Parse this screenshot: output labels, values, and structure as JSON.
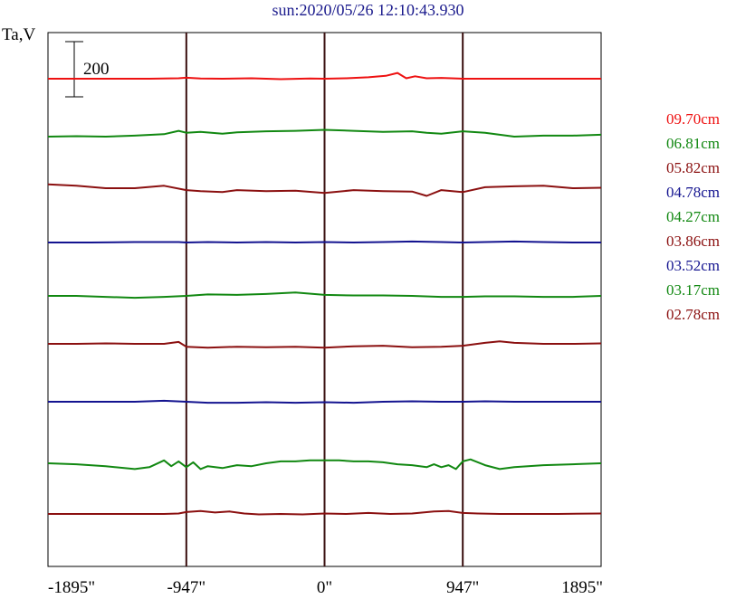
{
  "title": "sun:2020/05/26 12:10:43.930",
  "ylabel": "Ta,V",
  "scale_bar_label": "200",
  "colors": {
    "red": "#ee1111",
    "green": "#118811",
    "maroon": "#8b1010",
    "navy": "#141490",
    "vline": "#3a1010"
  },
  "chart_data": {
    "type": "line",
    "title": "sun:2020/05/26 12:10:43.930",
    "ylabel": "Ta,V",
    "x_ticks": [
      -1895,
      -947,
      0,
      947,
      1895
    ],
    "x_tick_labels": [
      "-1895\"",
      "-947\"",
      "0\"",
      "947\"",
      "1895\""
    ],
    "xlim": [
      -1895,
      1895
    ],
    "vertical_markers": [
      -947,
      0,
      947
    ],
    "scale_bar": 200,
    "series": [
      {
        "name": "09.70cm",
        "color": "#ee1111",
        "offset": 0,
        "x": [
          -1895,
          -1500,
          -1200,
          -1000,
          -947,
          -850,
          -700,
          -500,
          -300,
          -100,
          0,
          150,
          300,
          420,
          500,
          560,
          620,
          700,
          800,
          947,
          1100,
          1300,
          1500,
          1895
        ],
        "y": [
          0,
          0,
          0,
          5,
          10,
          3,
          0,
          5,
          -5,
          3,
          0,
          5,
          15,
          30,
          60,
          5,
          25,
          5,
          8,
          0,
          0,
          0,
          0,
          0
        ]
      },
      {
        "name": "06.81cm",
        "color": "#118811",
        "offset": 0,
        "x": [
          -1895,
          -1700,
          -1500,
          -1300,
          -1100,
          -1000,
          -947,
          -850,
          -700,
          -600,
          -400,
          -200,
          0,
          200,
          400,
          600,
          700,
          800,
          947,
          1100,
          1300,
          1500,
          1700,
          1895
        ],
        "y": [
          0,
          5,
          0,
          10,
          25,
          60,
          40,
          50,
          30,
          45,
          55,
          60,
          70,
          60,
          50,
          55,
          40,
          30,
          55,
          40,
          0,
          10,
          10,
          20
        ]
      },
      {
        "name": "05.82cm",
        "color": "#8b1010",
        "offset": 0,
        "x": [
          -1895,
          -1700,
          -1500,
          -1300,
          -1100,
          -947,
          -850,
          -700,
          -600,
          -400,
          -200,
          0,
          200,
          400,
          600,
          700,
          800,
          947,
          1100,
          1300,
          1500,
          1700,
          1895
        ],
        "y": [
          40,
          25,
          0,
          0,
          25,
          -20,
          -30,
          -40,
          -20,
          -30,
          -25,
          -50,
          -20,
          -30,
          -35,
          -80,
          -20,
          -40,
          10,
          20,
          25,
          0,
          5
        ]
      },
      {
        "name": "04.78cm",
        "color": "#141490",
        "offset": 0,
        "x": [
          -1895,
          -1600,
          -1300,
          -1000,
          -947,
          -800,
          -600,
          -400,
          -200,
          0,
          200,
          400,
          600,
          800,
          947,
          1100,
          1300,
          1500,
          1700,
          1895
        ],
        "y": [
          0,
          0,
          5,
          5,
          0,
          5,
          0,
          5,
          0,
          5,
          0,
          5,
          10,
          5,
          0,
          5,
          10,
          5,
          0,
          0
        ]
      },
      {
        "name": "04.27cm",
        "color": "#118811",
        "offset": 0,
        "x": [
          -1895,
          -1700,
          -1500,
          -1300,
          -1100,
          -947,
          -800,
          -600,
          -400,
          -200,
          0,
          200,
          400,
          600,
          800,
          947,
          1100,
          1300,
          1500,
          1700,
          1895
        ],
        "y": [
          0,
          0,
          -10,
          -20,
          -10,
          0,
          15,
          10,
          20,
          35,
          10,
          5,
          5,
          0,
          -10,
          -10,
          -5,
          -5,
          -10,
          -10,
          0
        ]
      },
      {
        "name": "03.86cm",
        "color": "#8b1010",
        "offset": 0,
        "x": [
          -1895,
          -1700,
          -1500,
          -1300,
          -1100,
          -1000,
          -947,
          -800,
          -600,
          -400,
          -200,
          0,
          200,
          400,
          600,
          800,
          947,
          1100,
          1200,
          1300,
          1500,
          1700,
          1895
        ],
        "y": [
          0,
          0,
          5,
          0,
          0,
          20,
          -30,
          -40,
          -30,
          -35,
          -30,
          -40,
          -25,
          -20,
          -35,
          -30,
          -20,
          10,
          25,
          10,
          0,
          0,
          5
        ]
      },
      {
        "name": "03.52cm",
        "color": "#141490",
        "offset": 0,
        "x": [
          -1895,
          -1700,
          -1500,
          -1300,
          -1100,
          -947,
          -800,
          -600,
          -400,
          -200,
          0,
          200,
          400,
          600,
          800,
          947,
          1100,
          1300,
          1500,
          1700,
          1895
        ],
        "y": [
          0,
          0,
          0,
          0,
          10,
          0,
          -10,
          -10,
          -5,
          -10,
          -5,
          -10,
          0,
          5,
          0,
          0,
          5,
          0,
          0,
          0,
          0
        ]
      },
      {
        "name": "03.17cm",
        "color": "#118811",
        "offset": 0,
        "x": [
          -1895,
          -1700,
          -1500,
          -1300,
          -1200,
          -1100,
          -1050,
          -1000,
          -947,
          -900,
          -850,
          -800,
          -700,
          -600,
          -500,
          -400,
          -300,
          -200,
          -100,
          0,
          100,
          200,
          300,
          400,
          500,
          600,
          700,
          750,
          800,
          850,
          900,
          947,
          1000,
          1100,
          1200,
          1300,
          1500,
          1700,
          1895
        ],
        "y": [
          0,
          -10,
          -30,
          -60,
          -40,
          30,
          -30,
          20,
          -40,
          10,
          -60,
          -30,
          -50,
          -20,
          -30,
          0,
          20,
          20,
          30,
          30,
          30,
          20,
          20,
          10,
          -10,
          -20,
          -40,
          -10,
          -40,
          -20,
          -60,
          20,
          40,
          -20,
          -60,
          -40,
          -20,
          -10,
          0
        ]
      },
      {
        "name": "02.78cm",
        "color": "#8b1010",
        "offset": 0,
        "x": [
          -1895,
          -1700,
          -1500,
          -1300,
          -1100,
          -1000,
          -947,
          -850,
          -750,
          -650,
          -550,
          -450,
          -300,
          -150,
          0,
          150,
          300,
          450,
          600,
          750,
          850,
          947,
          1050,
          1200,
          1400,
          1600,
          1895
        ],
        "y": [
          0,
          0,
          0,
          0,
          0,
          5,
          20,
          30,
          15,
          25,
          5,
          -5,
          0,
          -5,
          5,
          0,
          10,
          0,
          5,
          25,
          30,
          10,
          5,
          0,
          0,
          0,
          5
        ]
      }
    ]
  },
  "legend": [
    {
      "label": "09.70cm",
      "color": "#ee1111"
    },
    {
      "label": "06.81cm",
      "color": "#118811"
    },
    {
      "label": "05.82cm",
      "color": "#8b1010"
    },
    {
      "label": "04.78cm",
      "color": "#141490"
    },
    {
      "label": "04.27cm",
      "color": "#118811"
    },
    {
      "label": "03.86cm",
      "color": "#8b1010"
    },
    {
      "label": "03.52cm",
      "color": "#141490"
    },
    {
      "label": "03.17cm",
      "color": "#118811"
    },
    {
      "label": "02.78cm",
      "color": "#8b1010"
    }
  ]
}
